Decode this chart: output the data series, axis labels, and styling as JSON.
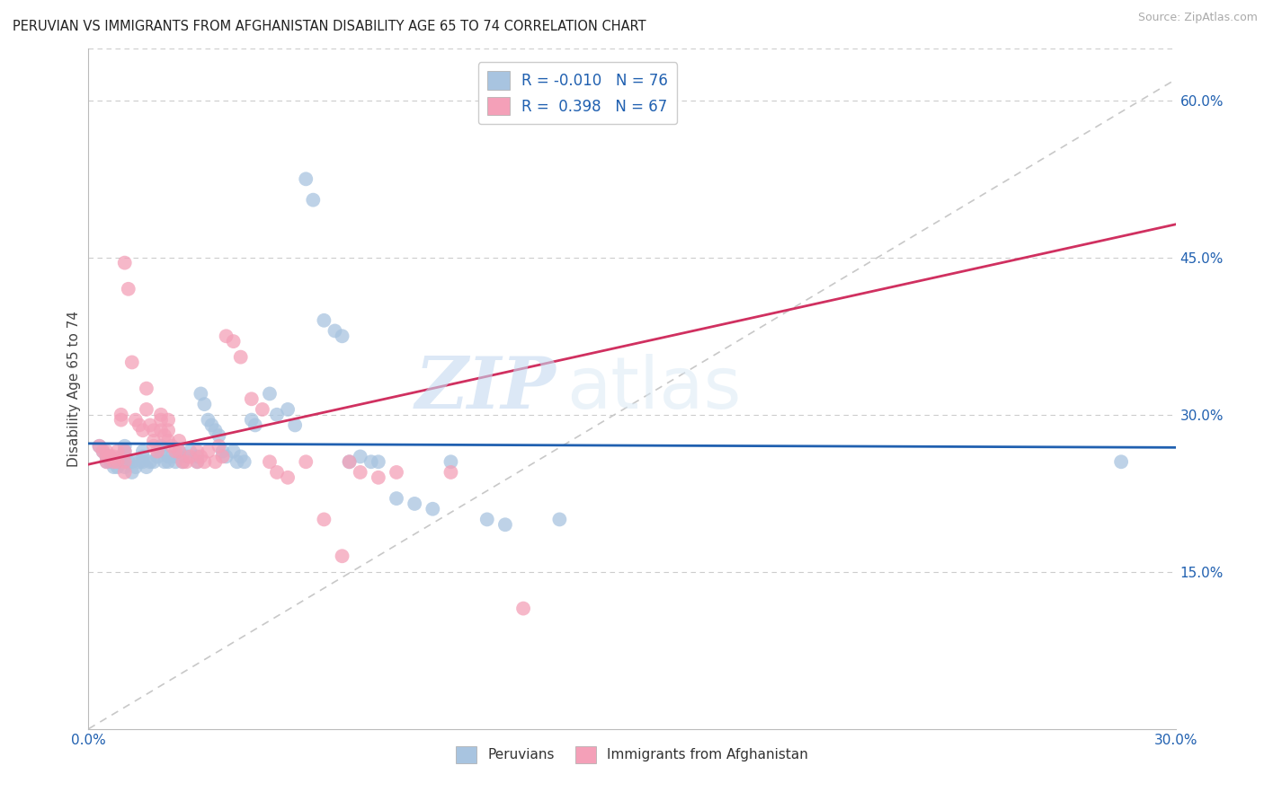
{
  "title": "PERUVIAN VS IMMIGRANTS FROM AFGHANISTAN DISABILITY AGE 65 TO 74 CORRELATION CHART",
  "source": "Source: ZipAtlas.com",
  "ylabel": "Disability Age 65 to 74",
  "legend_blue_R": "-0.010",
  "legend_blue_N": "76",
  "legend_pink_R": "0.398",
  "legend_pink_N": "67",
  "legend_label_blue": "Peruvians",
  "legend_label_pink": "Immigrants from Afghanistan",
  "xlim": [
    0.0,
    0.3
  ],
  "ylim": [
    0.0,
    0.65
  ],
  "yticks": [
    0.15,
    0.3,
    0.45,
    0.6
  ],
  "ytick_labels": [
    "15.0%",
    "30.0%",
    "45.0%",
    "60.0%"
  ],
  "xticks": [
    0.0,
    0.05,
    0.1,
    0.15,
    0.2,
    0.25,
    0.3
  ],
  "xtick_labels": [
    "0.0%",
    "",
    "",
    "",
    "",
    "",
    "30.0%"
  ],
  "blue_color": "#a8c4e0",
  "pink_color": "#f4a0b8",
  "blue_line_color": "#2060b0",
  "pink_line_color": "#d03060",
  "gray_dash_color": "#c8c8c8",
  "watermark_zip": "ZIP",
  "watermark_atlas": "atlas",
  "blue_dots": [
    [
      0.003,
      0.27
    ],
    [
      0.004,
      0.265
    ],
    [
      0.005,
      0.26
    ],
    [
      0.005,
      0.255
    ],
    [
      0.006,
      0.26
    ],
    [
      0.006,
      0.255
    ],
    [
      0.007,
      0.255
    ],
    [
      0.007,
      0.25
    ],
    [
      0.008,
      0.25
    ],
    [
      0.009,
      0.26
    ],
    [
      0.009,
      0.255
    ],
    [
      0.01,
      0.27
    ],
    [
      0.01,
      0.265
    ],
    [
      0.01,
      0.26
    ],
    [
      0.01,
      0.25
    ],
    [
      0.011,
      0.255
    ],
    [
      0.012,
      0.255
    ],
    [
      0.012,
      0.245
    ],
    [
      0.013,
      0.25
    ],
    [
      0.014,
      0.255
    ],
    [
      0.015,
      0.265
    ],
    [
      0.015,
      0.26
    ],
    [
      0.015,
      0.255
    ],
    [
      0.016,
      0.25
    ],
    [
      0.017,
      0.255
    ],
    [
      0.018,
      0.255
    ],
    [
      0.019,
      0.26
    ],
    [
      0.02,
      0.27
    ],
    [
      0.02,
      0.265
    ],
    [
      0.021,
      0.255
    ],
    [
      0.022,
      0.26
    ],
    [
      0.022,
      0.255
    ],
    [
      0.023,
      0.26
    ],
    [
      0.024,
      0.255
    ],
    [
      0.025,
      0.265
    ],
    [
      0.025,
      0.26
    ],
    [
      0.026,
      0.255
    ],
    [
      0.027,
      0.26
    ],
    [
      0.028,
      0.265
    ],
    [
      0.03,
      0.26
    ],
    [
      0.03,
      0.255
    ],
    [
      0.031,
      0.32
    ],
    [
      0.032,
      0.31
    ],
    [
      0.033,
      0.295
    ],
    [
      0.034,
      0.29
    ],
    [
      0.035,
      0.285
    ],
    [
      0.036,
      0.28
    ],
    [
      0.037,
      0.265
    ],
    [
      0.038,
      0.26
    ],
    [
      0.04,
      0.265
    ],
    [
      0.041,
      0.255
    ],
    [
      0.042,
      0.26
    ],
    [
      0.043,
      0.255
    ],
    [
      0.045,
      0.295
    ],
    [
      0.046,
      0.29
    ],
    [
      0.05,
      0.32
    ],
    [
      0.052,
      0.3
    ],
    [
      0.055,
      0.305
    ],
    [
      0.057,
      0.29
    ],
    [
      0.06,
      0.525
    ],
    [
      0.062,
      0.505
    ],
    [
      0.065,
      0.39
    ],
    [
      0.068,
      0.38
    ],
    [
      0.07,
      0.375
    ],
    [
      0.072,
      0.255
    ],
    [
      0.075,
      0.26
    ],
    [
      0.078,
      0.255
    ],
    [
      0.08,
      0.255
    ],
    [
      0.085,
      0.22
    ],
    [
      0.09,
      0.215
    ],
    [
      0.095,
      0.21
    ],
    [
      0.1,
      0.255
    ],
    [
      0.11,
      0.2
    ],
    [
      0.115,
      0.195
    ],
    [
      0.13,
      0.2
    ],
    [
      0.285,
      0.255
    ]
  ],
  "pink_dots": [
    [
      0.003,
      0.27
    ],
    [
      0.004,
      0.265
    ],
    [
      0.005,
      0.265
    ],
    [
      0.005,
      0.26
    ],
    [
      0.005,
      0.255
    ],
    [
      0.006,
      0.26
    ],
    [
      0.007,
      0.26
    ],
    [
      0.007,
      0.255
    ],
    [
      0.008,
      0.255
    ],
    [
      0.008,
      0.265
    ],
    [
      0.009,
      0.3
    ],
    [
      0.009,
      0.295
    ],
    [
      0.01,
      0.265
    ],
    [
      0.01,
      0.255
    ],
    [
      0.01,
      0.245
    ],
    [
      0.01,
      0.445
    ],
    [
      0.011,
      0.42
    ],
    [
      0.012,
      0.35
    ],
    [
      0.013,
      0.295
    ],
    [
      0.014,
      0.29
    ],
    [
      0.015,
      0.285
    ],
    [
      0.016,
      0.325
    ],
    [
      0.016,
      0.305
    ],
    [
      0.017,
      0.29
    ],
    [
      0.018,
      0.285
    ],
    [
      0.018,
      0.275
    ],
    [
      0.018,
      0.27
    ],
    [
      0.019,
      0.265
    ],
    [
      0.02,
      0.3
    ],
    [
      0.02,
      0.295
    ],
    [
      0.02,
      0.285
    ],
    [
      0.021,
      0.28
    ],
    [
      0.022,
      0.295
    ],
    [
      0.022,
      0.285
    ],
    [
      0.022,
      0.275
    ],
    [
      0.023,
      0.27
    ],
    [
      0.024,
      0.265
    ],
    [
      0.025,
      0.275
    ],
    [
      0.025,
      0.265
    ],
    [
      0.026,
      0.255
    ],
    [
      0.027,
      0.255
    ],
    [
      0.028,
      0.26
    ],
    [
      0.03,
      0.265
    ],
    [
      0.03,
      0.255
    ],
    [
      0.031,
      0.26
    ],
    [
      0.032,
      0.255
    ],
    [
      0.033,
      0.265
    ],
    [
      0.035,
      0.255
    ],
    [
      0.036,
      0.27
    ],
    [
      0.037,
      0.26
    ],
    [
      0.038,
      0.375
    ],
    [
      0.04,
      0.37
    ],
    [
      0.042,
      0.355
    ],
    [
      0.045,
      0.315
    ],
    [
      0.048,
      0.305
    ],
    [
      0.05,
      0.255
    ],
    [
      0.052,
      0.245
    ],
    [
      0.055,
      0.24
    ],
    [
      0.06,
      0.255
    ],
    [
      0.065,
      0.2
    ],
    [
      0.07,
      0.165
    ],
    [
      0.072,
      0.255
    ],
    [
      0.075,
      0.245
    ],
    [
      0.08,
      0.24
    ],
    [
      0.085,
      0.245
    ],
    [
      0.1,
      0.245
    ],
    [
      0.12,
      0.115
    ]
  ]
}
